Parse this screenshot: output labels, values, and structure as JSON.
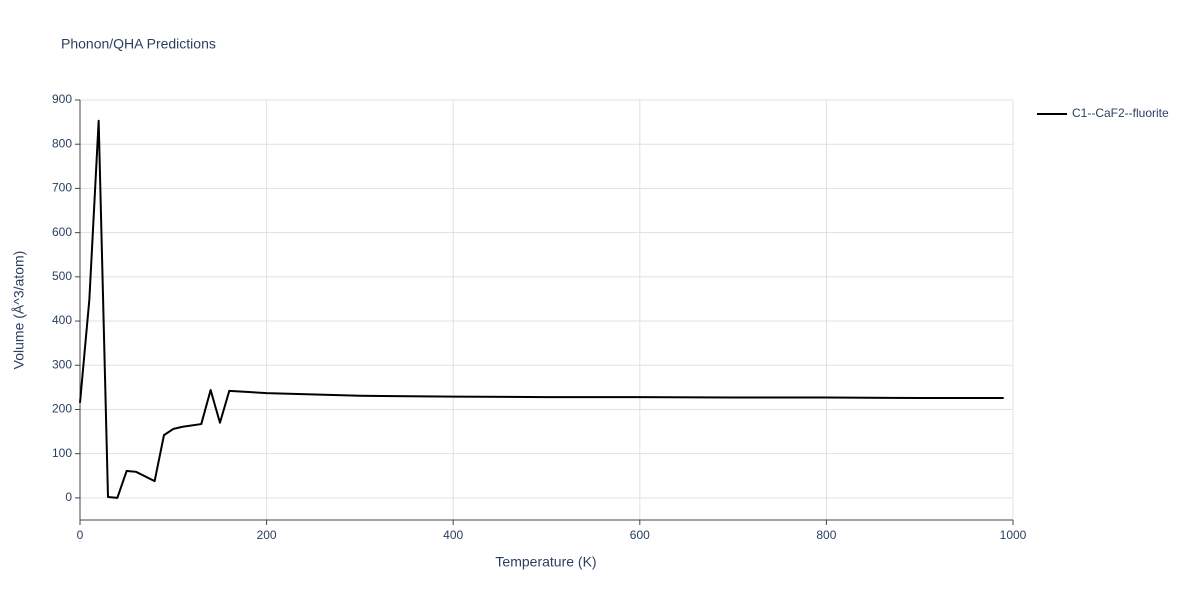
{
  "chart_data": {
    "type": "line",
    "title": "Phonon/QHA Predictions",
    "x_label": "Temperature (K)",
    "y_label": "Volume (Å^3/atom)",
    "x": [
      0,
      10,
      20,
      30,
      40,
      50,
      60,
      80,
      90,
      100,
      110,
      130,
      140,
      150,
      160,
      200,
      300,
      400,
      500,
      600,
      700,
      800,
      900,
      990
    ],
    "series": [
      {
        "name": "C1--CaF2--fluorite",
        "color": "#000000",
        "values": [
          215,
          448,
          853,
          2,
          0,
          61,
          59,
          38,
          142,
          156,
          161,
          167,
          244,
          170,
          242,
          237,
          231,
          229,
          228,
          228,
          227,
          227,
          226,
          226
        ]
      }
    ],
    "xlim": [
      0,
      1000
    ],
    "xticks": [
      0,
      200,
      400,
      600,
      800,
      1000
    ],
    "ylim": [
      -50,
      900
    ],
    "yticks": [
      0,
      100,
      200,
      300,
      400,
      500,
      600,
      700,
      800,
      900
    ],
    "grid": true,
    "legend": "top-right"
  }
}
